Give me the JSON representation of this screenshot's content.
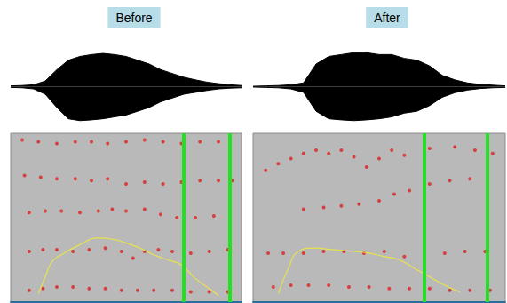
{
  "chart_data": [
    {
      "type": "spectrogram",
      "title": "Before",
      "tick_labels": false,
      "waveform": {
        "type": "area",
        "color": "#000000",
        "x": [
          0,
          5,
          10,
          15,
          20,
          25,
          30,
          35,
          40,
          45,
          50,
          55,
          60,
          65,
          70,
          75,
          80,
          85,
          90,
          95,
          100
        ],
        "upper": [
          2,
          3,
          5,
          15,
          45,
          70,
          80,
          85,
          88,
          85,
          80,
          70,
          60,
          45,
          35,
          25,
          18,
          12,
          8,
          5,
          3
        ],
        "lower": [
          -2,
          -3,
          -6,
          -20,
          -55,
          -85,
          -90,
          -88,
          -85,
          -80,
          -75,
          -65,
          -55,
          -40,
          -30,
          -20,
          -15,
          -10,
          -6,
          -4,
          -3
        ],
        "xlim": [
          0,
          100
        ],
        "ylim": [
          -100,
          100
        ]
      },
      "spectrogram": {
        "xlim": [
          0,
          100
        ],
        "ylim": [
          0,
          100
        ],
        "series": [
          {
            "type": "scatter",
            "color": "#e02020",
            "marker": "circle",
            "values": [
              [
                8,
                7
              ],
              [
                14,
                8
              ],
              [
                20,
                9
              ],
              [
                27,
                9
              ],
              [
                34,
                8
              ],
              [
                41,
                8
              ],
              [
                48,
                7
              ],
              [
                55,
                7
              ],
              [
                62,
                7
              ],
              [
                70,
                7
              ],
              [
                78,
                6
              ],
              [
                86,
                6
              ],
              [
                94,
                6
              ]
            ]
          },
          {
            "type": "scatter",
            "color": "#e02020",
            "marker": "circle",
            "values": [
              [
                8,
                30
              ],
              [
                14,
                31
              ],
              [
                20,
                31
              ],
              [
                27,
                30
              ],
              [
                34,
                31
              ],
              [
                41,
                32
              ],
              [
                48,
                30
              ],
              [
                53,
                26
              ],
              [
                58,
                30
              ],
              [
                64,
                31
              ],
              [
                70,
                30
              ],
              [
                78,
                29
              ],
              [
                86,
                30
              ],
              [
                94,
                31
              ]
            ]
          },
          {
            "type": "scatter",
            "color": "#e02020",
            "marker": "circle",
            "values": [
              [
                8,
                53
              ],
              [
                15,
                54
              ],
              [
                22,
                54
              ],
              [
                30,
                53
              ],
              [
                38,
                54
              ],
              [
                44,
                55
              ],
              [
                50,
                54
              ],
              [
                58,
                55
              ],
              [
                65,
                52
              ],
              [
                72,
                50
              ],
              [
                80,
                50
              ],
              [
                88,
                51
              ],
              [
                95,
                51
              ]
            ]
          },
          {
            "type": "scatter",
            "color": "#e02020",
            "marker": "circle",
            "values": [
              [
                6,
                75
              ],
              [
                13,
                74
              ],
              [
                20,
                73
              ],
              [
                28,
                73
              ],
              [
                35,
                72
              ],
              [
                42,
                73
              ],
              [
                50,
                70
              ],
              [
                58,
                71
              ],
              [
                66,
                70
              ],
              [
                74,
                71
              ],
              [
                82,
                72
              ],
              [
                90,
                72
              ],
              [
                96,
                72
              ]
            ]
          },
          {
            "type": "scatter",
            "color": "#e02020",
            "marker": "circle",
            "values": [
              [
                5,
                96
              ],
              [
                12,
                95
              ],
              [
                20,
                94
              ],
              [
                28,
                95
              ],
              [
                35,
                95
              ],
              [
                42,
                94
              ],
              [
                50,
                95
              ],
              [
                58,
                96
              ],
              [
                66,
                95
              ],
              [
                74,
                94
              ],
              [
                82,
                95
              ],
              [
                90,
                95
              ]
            ]
          },
          {
            "type": "line",
            "color": "#e6e44c",
            "line_style": "solid",
            "values": [
              [
                12,
                5
              ],
              [
                15,
                15
              ],
              [
                18,
                24
              ],
              [
                22,
                28
              ],
              [
                30,
                34
              ],
              [
                38,
                38
              ],
              [
                45,
                37
              ],
              [
                50,
                35
              ],
              [
                56,
                32
              ],
              [
                62,
                28
              ],
              [
                68,
                25
              ],
              [
                74,
                22
              ],
              [
                80,
                14
              ],
              [
                86,
                8
              ],
              [
                90,
                4
              ]
            ]
          },
          {
            "type": "vline",
            "color": "#22e022",
            "values": [
              75,
              95
            ]
          }
        ]
      }
    },
    {
      "type": "spectrogram",
      "title": "After",
      "tick_labels": false,
      "waveform": {
        "type": "area",
        "color": "#000000",
        "x": [
          0,
          5,
          10,
          15,
          20,
          25,
          30,
          35,
          40,
          45,
          50,
          55,
          60,
          65,
          70,
          75,
          80,
          85,
          90,
          95,
          100
        ],
        "upper": [
          1,
          2,
          3,
          5,
          10,
          60,
          80,
          85,
          90,
          90,
          85,
          85,
          75,
          70,
          55,
          30,
          18,
          10,
          6,
          4,
          2
        ],
        "lower": [
          -1,
          -2,
          -3,
          -6,
          -15,
          -65,
          -85,
          -88,
          -90,
          -88,
          -85,
          -80,
          -70,
          -65,
          -50,
          -28,
          -16,
          -9,
          -5,
          -3,
          -2
        ],
        "xlim": [
          0,
          100
        ],
        "ylim": [
          -100,
          100
        ]
      },
      "spectrogram": {
        "xlim": [
          0,
          100
        ],
        "ylim": [
          0,
          100
        ],
        "series": [
          {
            "type": "scatter",
            "color": "#e02020",
            "marker": "circle",
            "values": [
              [
                8,
                9
              ],
              [
                15,
                10
              ],
              [
                22,
                10
              ],
              [
                30,
                10
              ],
              [
                38,
                9
              ],
              [
                46,
                9
              ],
              [
                54,
                8
              ],
              [
                62,
                8
              ],
              [
                70,
                8
              ],
              [
                78,
                7
              ],
              [
                86,
                7
              ],
              [
                94,
                7
              ]
            ]
          },
          {
            "type": "scatter",
            "color": "#e02020",
            "marker": "circle",
            "values": [
              [
                6,
                29
              ],
              [
                12,
                29
              ],
              [
                20,
                29
              ],
              [
                28,
                30
              ],
              [
                36,
                30
              ],
              [
                44,
                29
              ],
              [
                52,
                30
              ],
              [
                60,
                27
              ],
              [
                68,
                28
              ],
              [
                76,
                29
              ],
              [
                84,
                30
              ],
              [
                92,
                30
              ]
            ]
          },
          {
            "type": "scatter",
            "color": "#e02020",
            "marker": "circle",
            "values": [
              [
                20,
                55
              ],
              [
                28,
                56
              ],
              [
                35,
                57
              ],
              [
                42,
                58
              ],
              [
                50,
                60
              ],
              [
                56,
                64
              ],
              [
                62,
                66
              ],
              [
                70,
                70
              ],
              [
                78,
                72
              ],
              [
                86,
                73
              ]
            ]
          },
          {
            "type": "scatter",
            "color": "#e02020",
            "marker": "circle",
            "values": [
              [
                5,
                78
              ],
              [
                10,
                82
              ],
              [
                15,
                85
              ],
              [
                20,
                88
              ],
              [
                25,
                90
              ],
              [
                30,
                88
              ],
              [
                35,
                90
              ],
              [
                40,
                86
              ],
              [
                45,
                80
              ],
              [
                50,
                85
              ],
              [
                55,
                90
              ],
              [
                60,
                87
              ],
              [
                70,
                91
              ],
              [
                80,
                92
              ],
              [
                88,
                90
              ],
              [
                95,
                88
              ]
            ]
          },
          {
            "type": "line",
            "color": "#e6e44c",
            "line_style": "solid",
            "values": [
              [
                10,
                5
              ],
              [
                14,
                20
              ],
              [
                18,
                30
              ],
              [
                24,
                32
              ],
              [
                32,
                31
              ],
              [
                40,
                30
              ],
              [
                46,
                29
              ],
              [
                52,
                27
              ],
              [
                58,
                25
              ],
              [
                64,
                20
              ],
              [
                70,
                15
              ],
              [
                76,
                10
              ],
              [
                82,
                6
              ]
            ]
          },
          {
            "type": "vline",
            "color": "#22e022",
            "values": [
              68,
              93
            ]
          }
        ]
      }
    }
  ]
}
